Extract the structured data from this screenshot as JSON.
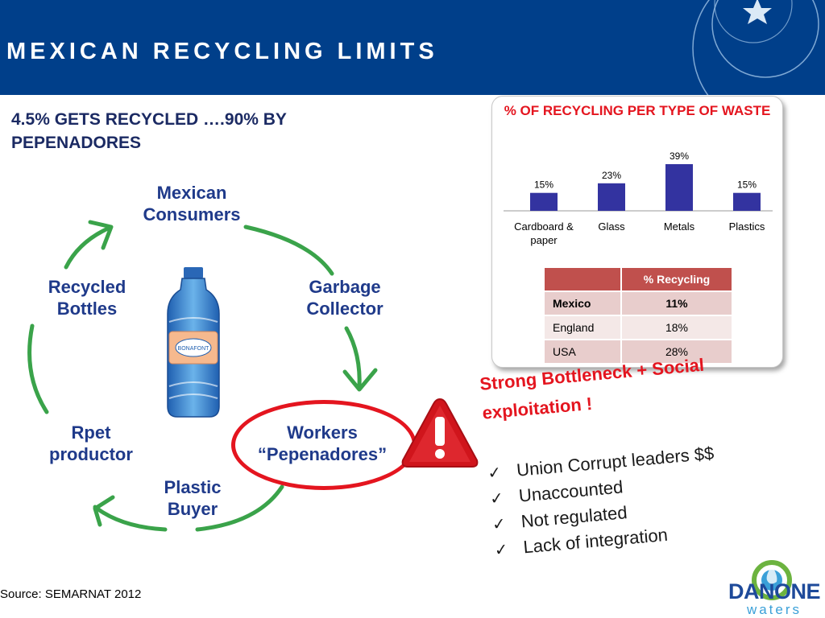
{
  "header": {
    "title": "MEXICAN RECYCLING LIMITS"
  },
  "subtitle": "4.5% GETS RECYCLED ….90% BY PEPENADORES",
  "cycle": {
    "consumers": "Mexican Consumers",
    "collector": "Garbage Collector",
    "workers": "Workers “Pepenadores”",
    "buyer": "Plastic Buyer",
    "rpet": "Rpet productor",
    "bottles": "Recycled Bottles",
    "bottle_label": "BONAFONT"
  },
  "chart_data": {
    "type": "bar",
    "title": "% OF RECYCLING PER TYPE OF WASTE",
    "categories": [
      "Cardboard & paper",
      "Glass",
      "Metals",
      "Plastics"
    ],
    "values": [
      15,
      23,
      39,
      15
    ],
    "value_labels": [
      "15%",
      "23%",
      "39%",
      "15%"
    ],
    "xlabel": "",
    "ylabel": "",
    "color": "#3333a0",
    "grid": false,
    "legend": "none"
  },
  "rates_table": {
    "header": [
      "",
      "% Recycling"
    ],
    "rows": [
      {
        "country": "Mexico",
        "rate": "11%",
        "bold": true
      },
      {
        "country": "England",
        "rate": "18%",
        "bold": false
      },
      {
        "country": "USA",
        "rate": "28%",
        "bold": false
      }
    ]
  },
  "bottleneck": {
    "line1": "Strong Bottleneck + Social",
    "line2": "exploitation !",
    "items": [
      "Union Corrupt leaders $$",
      "Unaccounted",
      "Not regulated",
      "Lack of integration"
    ],
    "check_glyph": "✓"
  },
  "source": "Source: SEMARNAT 2012",
  "logo": {
    "word": "DANONE",
    "sub": "waters"
  },
  "colors": {
    "header_bg": "#003f8a",
    "accent_red": "#e4151f",
    "node_blue": "#1f3a8a",
    "arrow_green": "#3aa34a",
    "table_header": "#c0504d"
  },
  "icons": [
    "star-icon",
    "warning-triangle-icon",
    "bottle-icon",
    "check-icon",
    "danone-logo-icon"
  ]
}
